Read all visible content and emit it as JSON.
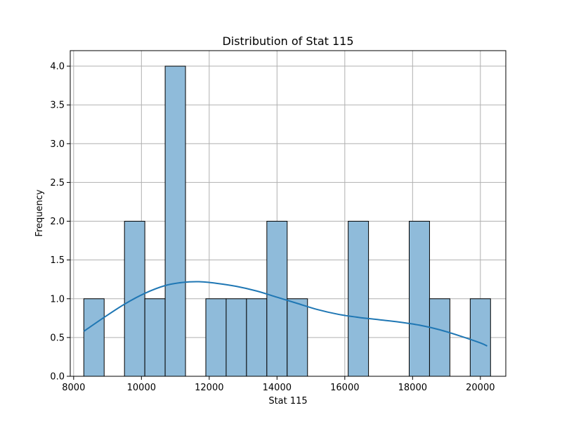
{
  "chart_data": {
    "type": "bar",
    "subtype": "histogram",
    "title": "Distribution of Stat 115",
    "xlabel": "Stat 115",
    "ylabel": "Frequency",
    "xlim": [
      7900,
      20750
    ],
    "ylim": [
      0,
      4.2
    ],
    "x_ticks": [
      8000,
      10000,
      12000,
      14000,
      16000,
      18000,
      20000
    ],
    "y_ticks": [
      0.0,
      0.5,
      1.0,
      1.5,
      2.0,
      2.5,
      3.0,
      3.5,
      4.0
    ],
    "x_tick_labels": [
      "8000",
      "10000",
      "12000",
      "14000",
      "16000",
      "18000",
      "20000"
    ],
    "y_tick_labels": [
      "0.0",
      "0.5",
      "1.0",
      "1.5",
      "2.0",
      "2.5",
      "3.0",
      "3.5",
      "4.0"
    ],
    "grid": true,
    "legend": "none",
    "bin_start": 8300,
    "bin_width": 600,
    "counts": [
      1,
      0,
      2,
      1,
      4,
      0,
      1,
      1,
      1,
      2,
      1,
      0,
      0,
      2,
      0,
      0,
      2,
      1,
      0,
      1
    ],
    "kde": {
      "x": [
        8300,
        8900,
        9500,
        10100,
        10700,
        11200,
        11700,
        12200,
        12800,
        13400,
        14000,
        14600,
        15200,
        15800,
        16400,
        17000,
        17600,
        18200,
        18800,
        19400,
        20000,
        20200
      ],
      "y": [
        0.58,
        0.76,
        0.93,
        1.07,
        1.17,
        1.21,
        1.22,
        1.2,
        1.16,
        1.1,
        1.02,
        0.94,
        0.86,
        0.8,
        0.76,
        0.73,
        0.7,
        0.66,
        0.6,
        0.52,
        0.43,
        0.39
      ]
    },
    "colors": {
      "bar_fill": "#8fbbda",
      "bar_edge": "#000000",
      "kde_line": "#1f77b4",
      "grid": "#b0b0b0"
    }
  }
}
